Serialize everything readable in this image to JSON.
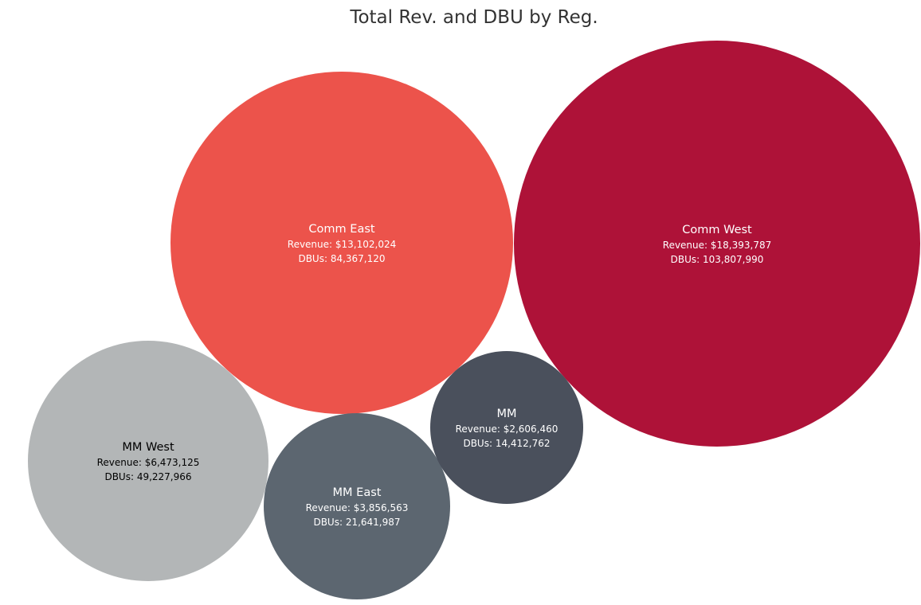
{
  "chart_data": {
    "type": "packed-bubble",
    "title": "Total Rev. and DBU by Reg.",
    "revenue_label": "Revenue: ",
    "dbus_label": "DBUs: ",
    "size_measure": "Revenue",
    "bubbles": [
      {
        "name": "Comm West",
        "revenue": 18393787,
        "revenue_text": "$18,393,787",
        "dbus": 103807990,
        "dbus_text": "103,807,990",
        "color": "#ae1238",
        "text_color": "#ffffff"
      },
      {
        "name": "Comm East",
        "revenue": 13102024,
        "revenue_text": "$13,102,024",
        "dbus": 84367120,
        "dbus_text": "84,367,120",
        "color": "#ec534b",
        "text_color": "#ffffff"
      },
      {
        "name": "MM West",
        "revenue": 6473125,
        "revenue_text": "$6,473,125",
        "dbus": 49227966,
        "dbus_text": "49,227,966",
        "color": "#b3b6b7",
        "text_color": "#000000"
      },
      {
        "name": "MM East",
        "revenue": 3856563,
        "revenue_text": "$3,856,563",
        "dbus": 21641987,
        "dbus_text": "21,641,987",
        "color": "#5c6670",
        "text_color": "#ffffff"
      },
      {
        "name": "MM",
        "revenue": 2606460,
        "revenue_text": "$2,606,460",
        "dbus": 14412762,
        "dbus_text": "14,412,762",
        "color": "#4a505c",
        "text_color": "#ffffff"
      }
    ]
  }
}
